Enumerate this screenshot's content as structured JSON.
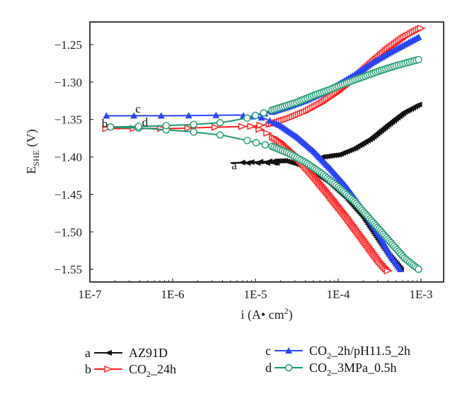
{
  "chart_data": {
    "type": "scatter",
    "title": "",
    "xlabel": "i (A• cm",
    "xlabel_sup": "2",
    "xlabel_end": ")",
    "ylabel_main": "E",
    "ylabel_sub": "SHE",
    "ylabel_end": " (V)",
    "x_scale": "log",
    "xlim": [
      1e-07,
      0.0013
    ],
    "ylim": [
      -1.575,
      -1.22
    ],
    "x_ticks": [
      {
        "value": -7,
        "label": "1E-7"
      },
      {
        "value": -6,
        "label": "1E-6"
      },
      {
        "value": -5,
        "label": "1E-5"
      },
      {
        "value": -4,
        "label": "1E-4"
      },
      {
        "value": -3,
        "label": "1E-3"
      }
    ],
    "y_ticks": [
      {
        "value": -1.25,
        "label": "−1.25"
      },
      {
        "value": -1.3,
        "label": "−1.30"
      },
      {
        "value": -1.35,
        "label": "−1.35"
      },
      {
        "value": -1.4,
        "label": "−1.40"
      },
      {
        "value": -1.45,
        "label": "−1.45"
      },
      {
        "value": -1.5,
        "label": "−1.50"
      },
      {
        "value": -1.55,
        "label": "−1.55"
      }
    ],
    "grid": false,
    "legend_position": "bottom",
    "series": [
      {
        "id": "a",
        "name": "AZ91D",
        "color": "#111111",
        "marker": "left-triangle-filled",
        "curve_label": "a",
        "cathodic": [
          [
            -4.75,
            -1.408
          ],
          [
            -4.95,
            -1.408
          ],
          [
            -5.1,
            -1.408
          ],
          [
            -5.3,
            -1.408
          ],
          [
            -4.65,
            -1.405
          ],
          [
            -4.5,
            -1.41
          ],
          [
            -4.3,
            -1.42
          ],
          [
            -4.1,
            -1.435
          ],
          [
            -3.9,
            -1.455
          ],
          [
            -3.7,
            -1.48
          ],
          [
            -3.55,
            -1.505
          ],
          [
            -3.4,
            -1.53
          ],
          [
            -3.25,
            -1.55
          ]
        ],
        "anodic": [
          [
            -4.2,
            -1.4
          ],
          [
            -4.0,
            -1.397
          ],
          [
            -3.8,
            -1.388
          ],
          [
            -3.6,
            -1.375
          ],
          [
            -3.4,
            -1.357
          ],
          [
            -3.2,
            -1.34
          ],
          [
            -3.03,
            -1.33
          ]
        ]
      },
      {
        "id": "b",
        "name": "CO2_24h",
        "color": "#ff2020",
        "marker": "right-triangle-open",
        "curve_label": "b",
        "cathodic": [
          [
            -6.8,
            -1.362
          ],
          [
            -6.0,
            -1.362
          ],
          [
            -5.4,
            -1.36
          ],
          [
            -5.05,
            -1.359
          ],
          [
            -4.9,
            -1.365
          ],
          [
            -4.7,
            -1.38
          ],
          [
            -4.5,
            -1.4
          ],
          [
            -4.3,
            -1.425
          ],
          [
            -4.1,
            -1.452
          ],
          [
            -3.9,
            -1.48
          ],
          [
            -3.7,
            -1.51
          ],
          [
            -3.5,
            -1.54
          ],
          [
            -3.4,
            -1.552
          ]
        ],
        "anodic": [
          [
            -5.05,
            -1.359
          ],
          [
            -4.8,
            -1.356
          ],
          [
            -4.6,
            -1.349
          ],
          [
            -4.4,
            -1.34
          ],
          [
            -4.2,
            -1.328
          ],
          [
            -4.0,
            -1.313
          ],
          [
            -3.8,
            -1.295
          ],
          [
            -3.6,
            -1.275
          ],
          [
            -3.4,
            -1.256
          ],
          [
            -3.2,
            -1.24
          ],
          [
            -3.0,
            -1.228
          ]
        ]
      },
      {
        "id": "c",
        "name": "CO2_2h/pH11.5_2h",
        "color": "#2b45f5",
        "marker": "up-triangle-filled",
        "curve_label": "c",
        "cathodic": [
          [
            -6.8,
            -1.345
          ],
          [
            -6.0,
            -1.345
          ],
          [
            -5.2,
            -1.344
          ],
          [
            -4.9,
            -1.348
          ],
          [
            -4.7,
            -1.358
          ],
          [
            -4.5,
            -1.373
          ],
          [
            -4.3,
            -1.392
          ],
          [
            -4.1,
            -1.415
          ],
          [
            -3.9,
            -1.44
          ],
          [
            -3.7,
            -1.47
          ],
          [
            -3.5,
            -1.505
          ],
          [
            -3.35,
            -1.535
          ],
          [
            -3.25,
            -1.55
          ]
        ],
        "anodic": [
          [
            -5.0,
            -1.345
          ],
          [
            -4.8,
            -1.34
          ],
          [
            -4.6,
            -1.333
          ],
          [
            -4.4,
            -1.325
          ],
          [
            -4.2,
            -1.315
          ],
          [
            -4.0,
            -1.303
          ],
          [
            -3.8,
            -1.29
          ],
          [
            -3.6,
            -1.275
          ],
          [
            -3.4,
            -1.262
          ],
          [
            -3.2,
            -1.25
          ],
          [
            -3.03,
            -1.24
          ]
        ]
      },
      {
        "id": "d",
        "name": "CO2_3MPa_0.5h",
        "color": "#1f9a72",
        "marker": "circle-open",
        "curve_label": "d",
        "cathodic": [
          [
            -6.75,
            -1.36
          ],
          [
            -6.3,
            -1.362
          ],
          [
            -5.8,
            -1.366
          ],
          [
            -5.4,
            -1.371
          ],
          [
            -5.1,
            -1.378
          ],
          [
            -4.8,
            -1.386
          ],
          [
            -4.6,
            -1.395
          ],
          [
            -4.4,
            -1.407
          ],
          [
            -4.2,
            -1.422
          ],
          [
            -4.0,
            -1.44
          ],
          [
            -3.8,
            -1.46
          ],
          [
            -3.6,
            -1.485
          ],
          [
            -3.4,
            -1.51
          ],
          [
            -3.2,
            -1.535
          ],
          [
            -3.03,
            -1.55
          ]
        ],
        "anodic": [
          [
            -6.75,
            -1.36
          ],
          [
            -6.3,
            -1.359
          ],
          [
            -5.8,
            -1.357
          ],
          [
            -5.4,
            -1.354
          ],
          [
            -5.1,
            -1.348
          ],
          [
            -4.9,
            -1.341
          ],
          [
            -4.7,
            -1.334
          ],
          [
            -4.5,
            -1.327
          ],
          [
            -4.3,
            -1.318
          ],
          [
            -4.1,
            -1.31
          ],
          [
            -3.9,
            -1.301
          ],
          [
            -3.7,
            -1.293
          ],
          [
            -3.5,
            -1.285
          ],
          [
            -3.3,
            -1.278
          ],
          [
            -3.03,
            -1.27
          ]
        ]
      }
    ],
    "legend": [
      {
        "letter": "a",
        "name": "AZ91D",
        "base": "AZ91D",
        "sub": "",
        "rest": ""
      },
      {
        "letter": "b",
        "name": "CO2_24h",
        "base": "CO",
        "sub": "2",
        "rest": "_24h"
      },
      {
        "letter": "c",
        "name": "CO2_2h/pH11.5_2h",
        "base": "CO",
        "sub": "2",
        "rest": "_2h/pH11.5_2h"
      },
      {
        "letter": "d",
        "name": "CO2_3MPa_0.5h",
        "base": "CO",
        "sub": "2",
        "rest": "_3MPa_0.5h"
      }
    ]
  }
}
